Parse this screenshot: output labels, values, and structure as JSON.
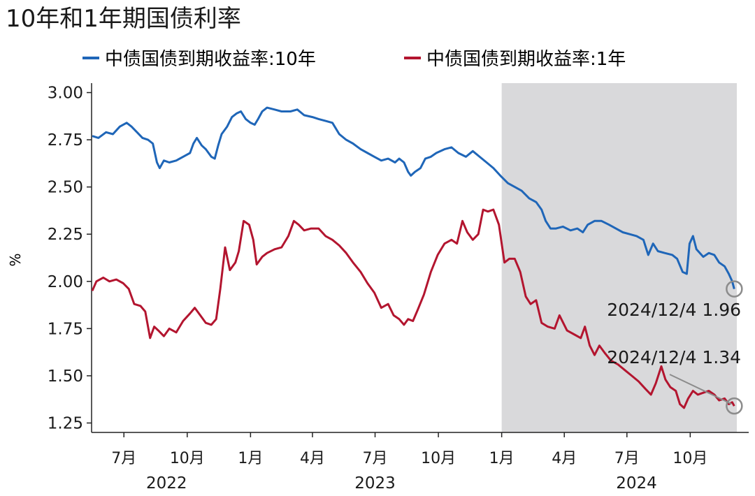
{
  "chart_data": {
    "type": "line",
    "title": "10年和1年期国债利率",
    "ylabel": "%",
    "ylim": [
      1.2,
      3.05
    ],
    "xlim": [
      "2022-05-15",
      "2024-12-25"
    ],
    "yticks": [
      "3.00",
      "2.75",
      "2.50",
      "2.25",
      "2.00",
      "1.75",
      "1.50",
      "1.25"
    ],
    "ytick_values": [
      3.0,
      2.75,
      2.5,
      2.25,
      2.0,
      1.75,
      1.5,
      1.25
    ],
    "xticks": [
      {
        "date": "2022-07-01",
        "label": "7月"
      },
      {
        "date": "2022-10-01",
        "label": "10月"
      },
      {
        "date": "2023-01-01",
        "label": "1月"
      },
      {
        "date": "2023-04-01",
        "label": "4月"
      },
      {
        "date": "2023-07-01",
        "label": "7月"
      },
      {
        "date": "2023-10-01",
        "label": "10月"
      },
      {
        "date": "2024-01-01",
        "label": "1月"
      },
      {
        "date": "2024-04-01",
        "label": "4月"
      },
      {
        "date": "2024-07-01",
        "label": "7月"
      },
      {
        "date": "2024-10-01",
        "label": "10月"
      }
    ],
    "years": [
      {
        "date": "2022-09-01",
        "label": "2022"
      },
      {
        "date": "2023-07-01",
        "label": "2023"
      },
      {
        "date": "2024-07-15",
        "label": "2024"
      }
    ],
    "shaded_region": {
      "start": "2024-01-01",
      "end": "2024-12-25",
      "color": "#d9d9db"
    },
    "legend_placement": "top",
    "grid": false,
    "series": [
      {
        "name": "中债国债到期收益率:10年",
        "color": "#1f66b8",
        "points": [
          [
            "2022-05-16",
            2.77
          ],
          [
            "2022-05-25",
            2.76
          ],
          [
            "2022-06-05",
            2.79
          ],
          [
            "2022-06-15",
            2.78
          ],
          [
            "2022-06-25",
            2.82
          ],
          [
            "2022-07-05",
            2.84
          ],
          [
            "2022-07-12",
            2.82
          ],
          [
            "2022-07-20",
            2.79
          ],
          [
            "2022-07-28",
            2.76
          ],
          [
            "2022-08-05",
            2.75
          ],
          [
            "2022-08-12",
            2.73
          ],
          [
            "2022-08-18",
            2.63
          ],
          [
            "2022-08-22",
            2.6
          ],
          [
            "2022-08-28",
            2.64
          ],
          [
            "2022-09-05",
            2.63
          ],
          [
            "2022-09-15",
            2.64
          ],
          [
            "2022-09-25",
            2.66
          ],
          [
            "2022-10-05",
            2.68
          ],
          [
            "2022-10-10",
            2.73
          ],
          [
            "2022-10-15",
            2.76
          ],
          [
            "2022-10-22",
            2.72
          ],
          [
            "2022-10-28",
            2.7
          ],
          [
            "2022-11-05",
            2.66
          ],
          [
            "2022-11-10",
            2.65
          ],
          [
            "2022-11-15",
            2.72
          ],
          [
            "2022-11-20",
            2.78
          ],
          [
            "2022-11-28",
            2.82
          ],
          [
            "2022-12-05",
            2.87
          ],
          [
            "2022-12-12",
            2.89
          ],
          [
            "2022-12-18",
            2.9
          ],
          [
            "2022-12-25",
            2.86
          ],
          [
            "2023-01-01",
            2.84
          ],
          [
            "2023-01-07",
            2.83
          ],
          [
            "2023-01-12",
            2.86
          ],
          [
            "2023-01-18",
            2.9
          ],
          [
            "2023-01-25",
            2.92
          ],
          [
            "2023-02-05",
            2.91
          ],
          [
            "2023-02-15",
            2.9
          ],
          [
            "2023-02-28",
            2.9
          ],
          [
            "2023-03-10",
            2.91
          ],
          [
            "2023-03-20",
            2.88
          ],
          [
            "2023-04-01",
            2.87
          ],
          [
            "2023-04-10",
            2.86
          ],
          [
            "2023-04-20",
            2.85
          ],
          [
            "2023-04-30",
            2.84
          ],
          [
            "2023-05-10",
            2.78
          ],
          [
            "2023-05-20",
            2.75
          ],
          [
            "2023-05-30",
            2.73
          ],
          [
            "2023-06-10",
            2.7
          ],
          [
            "2023-06-20",
            2.68
          ],
          [
            "2023-06-30",
            2.66
          ],
          [
            "2023-07-10",
            2.64
          ],
          [
            "2023-07-20",
            2.65
          ],
          [
            "2023-07-30",
            2.63
          ],
          [
            "2023-08-05",
            2.65
          ],
          [
            "2023-08-12",
            2.63
          ],
          [
            "2023-08-18",
            2.58
          ],
          [
            "2023-08-22",
            2.56
          ],
          [
            "2023-08-28",
            2.58
          ],
          [
            "2023-09-05",
            2.6
          ],
          [
            "2023-09-12",
            2.65
          ],
          [
            "2023-09-20",
            2.66
          ],
          [
            "2023-09-28",
            2.68
          ],
          [
            "2023-10-10",
            2.7
          ],
          [
            "2023-10-20",
            2.71
          ],
          [
            "2023-10-30",
            2.68
          ],
          [
            "2023-11-10",
            2.66
          ],
          [
            "2023-11-20",
            2.69
          ],
          [
            "2023-11-30",
            2.66
          ],
          [
            "2023-12-10",
            2.63
          ],
          [
            "2023-12-20",
            2.6
          ],
          [
            "2023-12-30",
            2.56
          ],
          [
            "2024-01-10",
            2.52
          ],
          [
            "2024-01-20",
            2.5
          ],
          [
            "2024-01-30",
            2.48
          ],
          [
            "2024-02-10",
            2.44
          ],
          [
            "2024-02-20",
            2.42
          ],
          [
            "2024-02-28",
            2.38
          ],
          [
            "2024-03-05",
            2.32
          ],
          [
            "2024-03-12",
            2.28
          ],
          [
            "2024-03-20",
            2.28
          ],
          [
            "2024-03-30",
            2.29
          ],
          [
            "2024-04-10",
            2.27
          ],
          [
            "2024-04-20",
            2.28
          ],
          [
            "2024-04-28",
            2.26
          ],
          [
            "2024-05-05",
            2.3
          ],
          [
            "2024-05-15",
            2.32
          ],
          [
            "2024-05-25",
            2.32
          ],
          [
            "2024-06-05",
            2.3
          ],
          [
            "2024-06-15",
            2.28
          ],
          [
            "2024-06-25",
            2.26
          ],
          [
            "2024-07-05",
            2.25
          ],
          [
            "2024-07-15",
            2.24
          ],
          [
            "2024-07-25",
            2.22
          ],
          [
            "2024-08-01",
            2.14
          ],
          [
            "2024-08-08",
            2.2
          ],
          [
            "2024-08-15",
            2.16
          ],
          [
            "2024-08-25",
            2.15
          ],
          [
            "2024-09-05",
            2.14
          ],
          [
            "2024-09-12",
            2.12
          ],
          [
            "2024-09-20",
            2.05
          ],
          [
            "2024-09-26",
            2.04
          ],
          [
            "2024-09-30",
            2.2
          ],
          [
            "2024-10-05",
            2.24
          ],
          [
            "2024-10-10",
            2.17
          ],
          [
            "2024-10-20",
            2.13
          ],
          [
            "2024-10-28",
            2.15
          ],
          [
            "2024-11-05",
            2.14
          ],
          [
            "2024-11-12",
            2.1
          ],
          [
            "2024-11-20",
            2.08
          ],
          [
            "2024-11-26",
            2.04
          ],
          [
            "2024-12-01",
            2.0
          ],
          [
            "2024-12-04",
            1.96
          ]
        ]
      },
      {
        "name": "中债国债到期收益率:1年",
        "color": "#b3152f",
        "points": [
          [
            "2022-05-16",
            1.95
          ],
          [
            "2022-05-22",
            2.0
          ],
          [
            "2022-06-01",
            2.02
          ],
          [
            "2022-06-10",
            2.0
          ],
          [
            "2022-06-20",
            2.01
          ],
          [
            "2022-06-30",
            1.99
          ],
          [
            "2022-07-08",
            1.96
          ],
          [
            "2022-07-16",
            1.88
          ],
          [
            "2022-07-25",
            1.87
          ],
          [
            "2022-08-01",
            1.84
          ],
          [
            "2022-08-08",
            1.7
          ],
          [
            "2022-08-14",
            1.76
          ],
          [
            "2022-08-20",
            1.74
          ],
          [
            "2022-08-28",
            1.71
          ],
          [
            "2022-09-05",
            1.75
          ],
          [
            "2022-09-15",
            1.73
          ],
          [
            "2022-09-25",
            1.79
          ],
          [
            "2022-10-05",
            1.83
          ],
          [
            "2022-10-12",
            1.86
          ],
          [
            "2022-10-20",
            1.82
          ],
          [
            "2022-10-28",
            1.78
          ],
          [
            "2022-11-05",
            1.77
          ],
          [
            "2022-11-12",
            1.8
          ],
          [
            "2022-11-18",
            1.96
          ],
          [
            "2022-11-25",
            2.18
          ],
          [
            "2022-12-02",
            2.06
          ],
          [
            "2022-12-10",
            2.1
          ],
          [
            "2022-12-15",
            2.16
          ],
          [
            "2022-12-22",
            2.32
          ],
          [
            "2022-12-30",
            2.3
          ],
          [
            "2023-01-05",
            2.22
          ],
          [
            "2023-01-10",
            2.09
          ],
          [
            "2023-01-18",
            2.13
          ],
          [
            "2023-01-25",
            2.15
          ],
          [
            "2023-02-05",
            2.17
          ],
          [
            "2023-02-15",
            2.18
          ],
          [
            "2023-02-25",
            2.24
          ],
          [
            "2023-03-05",
            2.32
          ],
          [
            "2023-03-12",
            2.3
          ],
          [
            "2023-03-20",
            2.27
          ],
          [
            "2023-03-30",
            2.28
          ],
          [
            "2023-04-10",
            2.28
          ],
          [
            "2023-04-20",
            2.24
          ],
          [
            "2023-04-30",
            2.22
          ],
          [
            "2023-05-10",
            2.19
          ],
          [
            "2023-05-20",
            2.15
          ],
          [
            "2023-05-30",
            2.1
          ],
          [
            "2023-06-10",
            2.05
          ],
          [
            "2023-06-20",
            1.99
          ],
          [
            "2023-06-30",
            1.94
          ],
          [
            "2023-07-10",
            1.86
          ],
          [
            "2023-07-20",
            1.88
          ],
          [
            "2023-07-28",
            1.82
          ],
          [
            "2023-08-05",
            1.8
          ],
          [
            "2023-08-12",
            1.77
          ],
          [
            "2023-08-18",
            1.8
          ],
          [
            "2023-08-25",
            1.79
          ],
          [
            "2023-09-01",
            1.85
          ],
          [
            "2023-09-10",
            1.93
          ],
          [
            "2023-09-20",
            2.05
          ],
          [
            "2023-09-30",
            2.14
          ],
          [
            "2023-10-10",
            2.2
          ],
          [
            "2023-10-20",
            2.22
          ],
          [
            "2023-10-28",
            2.2
          ],
          [
            "2023-11-05",
            2.32
          ],
          [
            "2023-11-12",
            2.26
          ],
          [
            "2023-11-20",
            2.22
          ],
          [
            "2023-11-28",
            2.25
          ],
          [
            "2023-12-05",
            2.38
          ],
          [
            "2023-12-12",
            2.37
          ],
          [
            "2023-12-20",
            2.38
          ],
          [
            "2023-12-28",
            2.3
          ],
          [
            "2024-01-05",
            2.1
          ],
          [
            "2024-01-12",
            2.12
          ],
          [
            "2024-01-20",
            2.12
          ],
          [
            "2024-01-28",
            2.05
          ],
          [
            "2024-02-05",
            1.92
          ],
          [
            "2024-02-12",
            1.88
          ],
          [
            "2024-02-20",
            1.9
          ],
          [
            "2024-02-28",
            1.78
          ],
          [
            "2024-03-08",
            1.76
          ],
          [
            "2024-03-18",
            1.75
          ],
          [
            "2024-03-25",
            1.82
          ],
          [
            "2024-04-05",
            1.74
          ],
          [
            "2024-04-15",
            1.72
          ],
          [
            "2024-04-25",
            1.7
          ],
          [
            "2024-05-01",
            1.76
          ],
          [
            "2024-05-08",
            1.66
          ],
          [
            "2024-05-15",
            1.61
          ],
          [
            "2024-05-22",
            1.66
          ],
          [
            "2024-05-30",
            1.62
          ],
          [
            "2024-06-08",
            1.58
          ],
          [
            "2024-06-18",
            1.56
          ],
          [
            "2024-06-28",
            1.53
          ],
          [
            "2024-07-08",
            1.5
          ],
          [
            "2024-07-18",
            1.47
          ],
          [
            "2024-07-28",
            1.43
          ],
          [
            "2024-08-05",
            1.4
          ],
          [
            "2024-08-12",
            1.46
          ],
          [
            "2024-08-20",
            1.55
          ],
          [
            "2024-08-26",
            1.48
          ],
          [
            "2024-09-02",
            1.44
          ],
          [
            "2024-09-10",
            1.42
          ],
          [
            "2024-09-16",
            1.35
          ],
          [
            "2024-09-22",
            1.33
          ],
          [
            "2024-09-28",
            1.38
          ],
          [
            "2024-10-05",
            1.42
          ],
          [
            "2024-10-12",
            1.4
          ],
          [
            "2024-10-20",
            1.41
          ],
          [
            "2024-10-28",
            1.42
          ],
          [
            "2024-11-05",
            1.4
          ],
          [
            "2024-11-12",
            1.37
          ],
          [
            "2024-11-20",
            1.38
          ],
          [
            "2024-11-26",
            1.35
          ],
          [
            "2024-12-01",
            1.36
          ],
          [
            "2024-12-04",
            1.34
          ]
        ]
      }
    ],
    "annotations": [
      {
        "text": "2024/12/4 1.96",
        "date": "2024-12-04",
        "value": 1.96
      },
      {
        "text": "2024/12/4 1.34",
        "date": "2024-12-04",
        "value": 1.34
      }
    ]
  }
}
